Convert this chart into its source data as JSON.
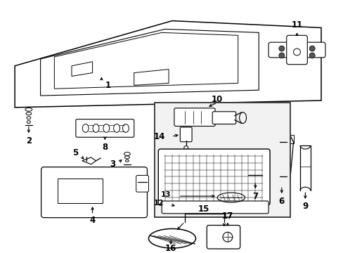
{
  "background_color": "#ffffff",
  "line_color": "#000000",
  "text_color": "#000000",
  "label_fontsize": 8.5,
  "bold": true,
  "figsize": [
    4.89,
    3.6
  ],
  "dpi": 100
}
